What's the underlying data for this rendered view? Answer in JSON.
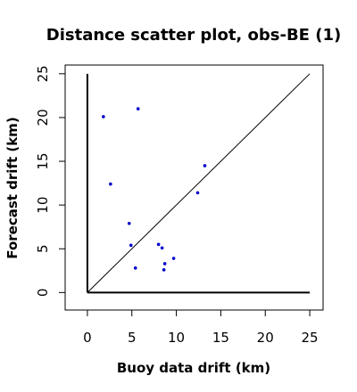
{
  "chart_data": {
    "type": "scatter",
    "title": "Distance scatter plot, obs-BE (1)",
    "xlabel": "Buoy data drift (km)",
    "ylabel": "Forecast drift (km)",
    "xlim": [
      -2.5,
      26.5
    ],
    "ylim": [
      -2,
      26
    ],
    "x_ticks": [
      0,
      5,
      10,
      15,
      20,
      25
    ],
    "y_ticks": [
      0,
      5,
      10,
      15,
      20,
      25
    ],
    "grid": false,
    "point_color": "#0000cc",
    "reference_line": {
      "x": [
        0,
        25
      ],
      "y": [
        0,
        25
      ]
    },
    "axis_lines": {
      "vertical_top": 25,
      "horizontal_right": 25
    },
    "series": [
      {
        "points": [
          {
            "x": 1.8,
            "y": 20.1
          },
          {
            "x": 5.7,
            "y": 21.0
          },
          {
            "x": 2.6,
            "y": 12.4
          },
          {
            "x": 13.2,
            "y": 14.5
          },
          {
            "x": 12.4,
            "y": 11.4
          },
          {
            "x": 4.7,
            "y": 7.9
          },
          {
            "x": 4.9,
            "y": 5.4
          },
          {
            "x": 8.0,
            "y": 5.5
          },
          {
            "x": 8.4,
            "y": 5.1
          },
          {
            "x": 9.7,
            "y": 3.9
          },
          {
            "x": 8.7,
            "y": 3.3
          },
          {
            "x": 5.4,
            "y": 2.8
          },
          {
            "x": 8.6,
            "y": 2.6
          }
        ]
      }
    ]
  }
}
